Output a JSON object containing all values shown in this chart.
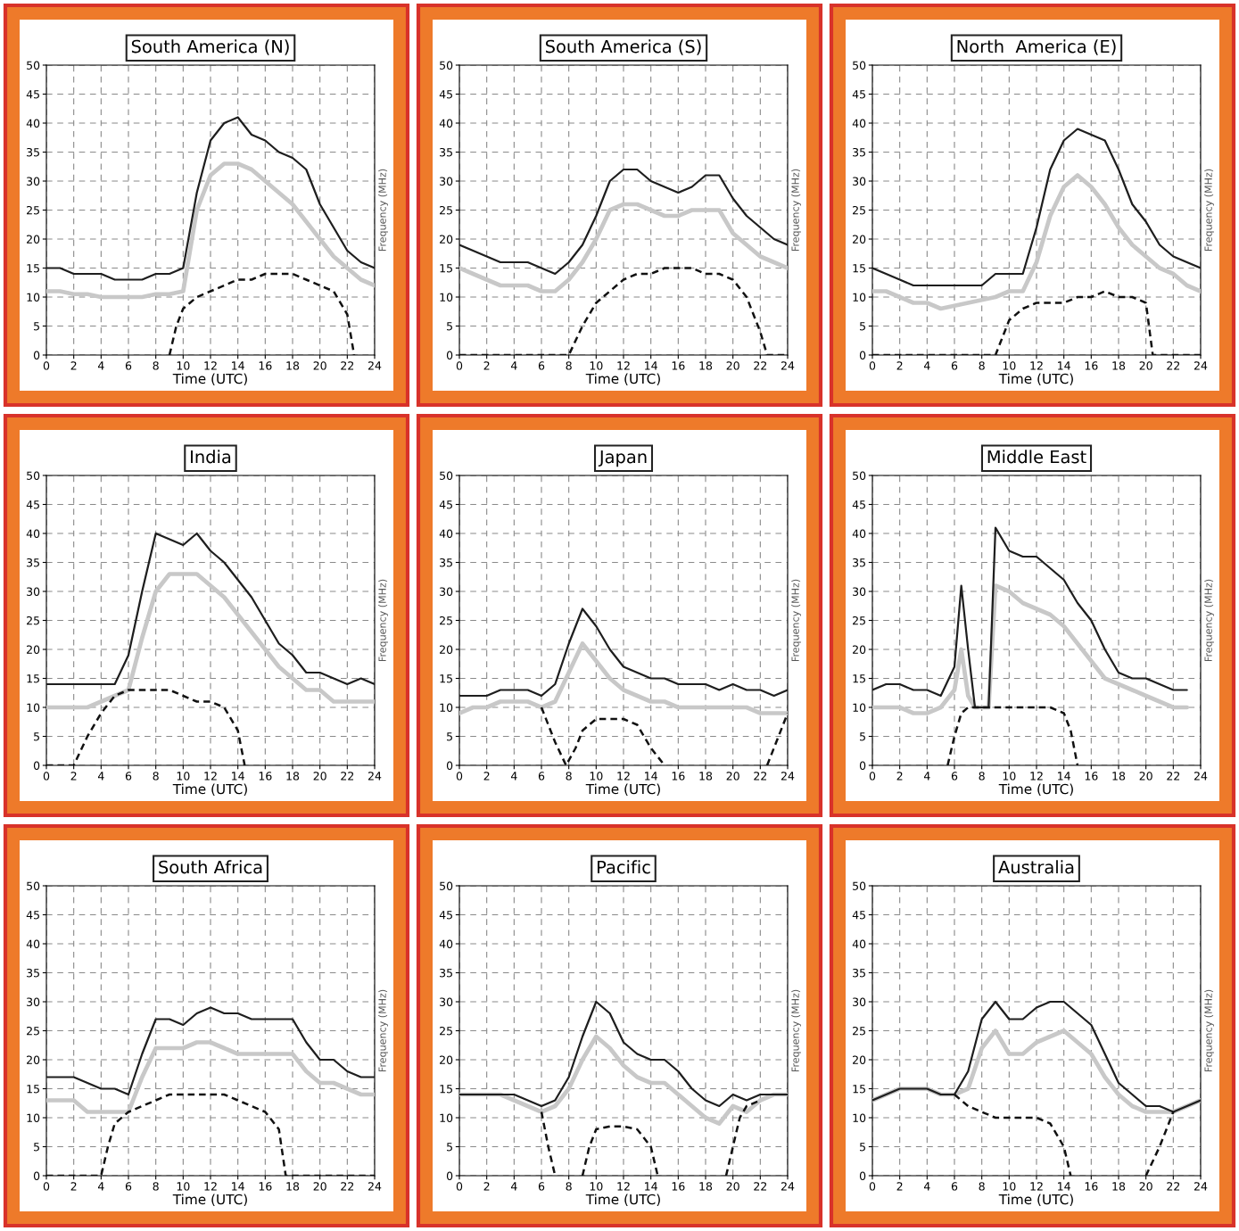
{
  "chart_data": [
    {
      "type": "line",
      "title": "South America (N)",
      "xlabel": "Time (UTC)",
      "ylabel": "Frequency (MHz)",
      "xlim": [
        0,
        24
      ],
      "xticks": [
        0,
        2,
        4,
        6,
        8,
        10,
        12,
        14,
        16,
        18,
        20,
        22,
        24
      ],
      "ylim": [
        0,
        50
      ],
      "yticks": [
        0,
        5,
        10,
        15,
        20,
        25,
        30,
        35,
        40,
        45,
        50
      ],
      "grid": true,
      "series": [
        {
          "color": "#1e1e1e",
          "line_style": "solid",
          "x": [
            0,
            1,
            2,
            3,
            4,
            5,
            6,
            7,
            8,
            9,
            10,
            11,
            12,
            13,
            14,
            15,
            16,
            17,
            18,
            19,
            20,
            21,
            22,
            23,
            24
          ],
          "values": [
            15,
            15,
            14,
            14,
            14,
            13,
            13,
            13,
            14,
            14,
            15,
            28,
            37,
            40,
            41,
            38,
            37,
            35,
            34,
            32,
            26,
            22,
            18,
            16,
            15
          ]
        },
        {
          "color": "#c8c8c8",
          "line_style": "solid",
          "x": [
            0,
            1,
            2,
            3,
            4,
            5,
            6,
            7,
            8,
            9,
            10,
            11,
            12,
            13,
            14,
            15,
            16,
            17,
            18,
            19,
            20,
            21,
            22,
            23,
            24
          ],
          "values": [
            11,
            11,
            10.5,
            10.5,
            10,
            10,
            10,
            10,
            10.5,
            10.5,
            11,
            25,
            31,
            33,
            33,
            32,
            30,
            28,
            26,
            23,
            20,
            17,
            15,
            13,
            12
          ]
        },
        {
          "color": "#111111",
          "line_style": "dashed",
          "x": [
            9,
            9.5,
            10,
            11,
            12,
            13,
            14,
            15,
            16,
            17,
            18,
            19,
            20,
            21,
            22,
            22.5
          ],
          "values": [
            0,
            5,
            8,
            10,
            11,
            12,
            13,
            13,
            14,
            14,
            14,
            13,
            12,
            11,
            7,
            0
          ]
        }
      ]
    },
    {
      "type": "line",
      "title": "South America (S)",
      "xlabel": "Time (UTC)",
      "ylabel": "Frequency (MHz)",
      "xlim": [
        0,
        24
      ],
      "xticks": [
        0,
        2,
        4,
        6,
        8,
        10,
        12,
        14,
        16,
        18,
        20,
        22,
        24
      ],
      "ylim": [
        0,
        50
      ],
      "yticks": [
        0,
        5,
        10,
        15,
        20,
        25,
        30,
        35,
        40,
        45,
        50
      ],
      "grid": true,
      "series": [
        {
          "color": "#1e1e1e",
          "line_style": "solid",
          "x": [
            0,
            1,
            2,
            3,
            4,
            5,
            6,
            7,
            8,
            9,
            10,
            11,
            12,
            13,
            14,
            15,
            16,
            17,
            18,
            19,
            20,
            21,
            22,
            23,
            24
          ],
          "values": [
            19,
            18,
            17,
            16,
            16,
            16,
            15,
            14,
            16,
            19,
            24,
            30,
            32,
            32,
            30,
            29,
            28,
            29,
            31,
            31,
            27,
            24,
            22,
            20,
            19
          ]
        },
        {
          "color": "#c8c8c8",
          "line_style": "solid",
          "x": [
            0,
            1,
            2,
            3,
            4,
            5,
            6,
            7,
            8,
            9,
            10,
            11,
            12,
            13,
            14,
            15,
            16,
            17,
            18,
            19,
            20,
            21,
            22,
            23,
            24
          ],
          "values": [
            15,
            14,
            13,
            12,
            12,
            12,
            11,
            11,
            13,
            16,
            20,
            25,
            26,
            26,
            25,
            24,
            24,
            25,
            25,
            25,
            21,
            19,
            17,
            16,
            15
          ]
        },
        {
          "color": "#111111",
          "line_style": "dashed",
          "x": [
            0,
            8,
            9,
            10,
            11,
            12,
            13,
            14,
            15,
            16,
            17,
            18,
            19,
            20,
            21,
            22,
            22.5,
            24
          ],
          "values": [
            0,
            0,
            5,
            9,
            11,
            13,
            14,
            14,
            15,
            15,
            15,
            14,
            14,
            13,
            10,
            4,
            0,
            0
          ]
        }
      ]
    },
    {
      "type": "line",
      "title": "North  America (E)",
      "xlabel": "Time (UTC)",
      "ylabel": "Frequency (MHz)",
      "xlim": [
        0,
        24
      ],
      "xticks": [
        0,
        2,
        4,
        6,
        8,
        10,
        12,
        14,
        16,
        18,
        20,
        22,
        24
      ],
      "ylim": [
        0,
        50
      ],
      "yticks": [
        0,
        5,
        10,
        15,
        20,
        25,
        30,
        35,
        40,
        45,
        50
      ],
      "grid": true,
      "series": [
        {
          "color": "#1e1e1e",
          "line_style": "solid",
          "x": [
            0,
            1,
            2,
            3,
            4,
            5,
            6,
            7,
            8,
            9,
            10,
            11,
            12,
            13,
            14,
            15,
            16,
            17,
            18,
            19,
            20,
            21,
            22,
            23,
            24
          ],
          "values": [
            15,
            14,
            13,
            12,
            12,
            12,
            12,
            12,
            12,
            14,
            14,
            14,
            22,
            32,
            37,
            39,
            38,
            37,
            32,
            26,
            23,
            19,
            17,
            16,
            15
          ]
        },
        {
          "color": "#c8c8c8",
          "line_style": "solid",
          "x": [
            0,
            1,
            2,
            3,
            4,
            5,
            6,
            7,
            8,
            9,
            10,
            11,
            12,
            13,
            14,
            15,
            16,
            17,
            18,
            19,
            20,
            21,
            22,
            23,
            24
          ],
          "values": [
            11,
            11,
            10,
            9,
            9,
            8,
            8.5,
            9,
            9.5,
            10,
            11,
            11,
            16,
            24,
            29,
            31,
            29,
            26,
            22,
            19,
            17,
            15,
            14,
            12,
            11
          ]
        },
        {
          "color": "#111111",
          "line_style": "dashed",
          "x": [
            0,
            9,
            9.5,
            10,
            11,
            12,
            13,
            14,
            15,
            16,
            17,
            18,
            19,
            20,
            20.5,
            24
          ],
          "values": [
            0,
            0,
            3,
            6,
            8,
            9,
            9,
            9,
            10,
            10,
            11,
            10,
            10,
            9,
            0,
            0
          ]
        }
      ]
    },
    {
      "type": "line",
      "title": "India",
      "xlabel": "Time (UTC)",
      "ylabel": "Frequency (MHz)",
      "xlim": [
        0,
        24
      ],
      "xticks": [
        0,
        2,
        4,
        6,
        8,
        10,
        12,
        14,
        16,
        18,
        20,
        22,
        24
      ],
      "ylim": [
        0,
        50
      ],
      "yticks": [
        0,
        5,
        10,
        15,
        20,
        25,
        30,
        35,
        40,
        45,
        50
      ],
      "grid": true,
      "series": [
        {
          "color": "#1e1e1e",
          "line_style": "solid",
          "x": [
            0,
            1,
            2,
            3,
            4,
            5,
            6,
            7,
            8,
            9,
            10,
            11,
            12,
            13,
            14,
            15,
            16,
            17,
            18,
            19,
            20,
            21,
            22,
            23,
            24
          ],
          "values": [
            14,
            14,
            14,
            14,
            14,
            14,
            19,
            30,
            40,
            39,
            38,
            40,
            37,
            35,
            32,
            29,
            25,
            21,
            19,
            16,
            16,
            15,
            14,
            15,
            14
          ]
        },
        {
          "color": "#c8c8c8",
          "line_style": "solid",
          "x": [
            0,
            1,
            2,
            3,
            4,
            5,
            6,
            7,
            8,
            9,
            10,
            11,
            12,
            13,
            14,
            15,
            16,
            17,
            18,
            19,
            20,
            21,
            22,
            23,
            24
          ],
          "values": [
            10,
            10,
            10,
            10,
            11,
            12,
            13,
            22,
            30,
            33,
            33,
            33,
            31,
            29,
            26,
            23,
            20,
            17,
            15,
            13,
            13,
            11,
            11,
            11,
            11
          ]
        },
        {
          "color": "#111111",
          "line_style": "dashed",
          "x": [
            0,
            2,
            3,
            4,
            5,
            6,
            7,
            8,
            9,
            10,
            11,
            12,
            13,
            14,
            14.5
          ],
          "values": [
            0,
            0,
            5,
            9,
            12,
            13,
            13,
            13,
            13,
            12,
            11,
            11,
            10,
            6,
            0
          ]
        }
      ]
    },
    {
      "type": "line",
      "title": "Japan",
      "xlabel": "Time (UTC)",
      "ylabel": "Frequency (MHz)",
      "xlim": [
        0,
        24
      ],
      "xticks": [
        0,
        2,
        4,
        6,
        8,
        10,
        12,
        14,
        16,
        18,
        20,
        22,
        24
      ],
      "ylim": [
        0,
        50
      ],
      "yticks": [
        0,
        5,
        10,
        15,
        20,
        25,
        30,
        35,
        40,
        45,
        50
      ],
      "grid": true,
      "series": [
        {
          "color": "#1e1e1e",
          "line_style": "solid",
          "x": [
            0,
            1,
            2,
            3,
            4,
            5,
            6,
            7,
            8,
            9,
            10,
            11,
            12,
            13,
            14,
            15,
            16,
            17,
            18,
            19,
            20,
            21,
            22,
            23,
            24
          ],
          "values": [
            12,
            12,
            12,
            13,
            13,
            13,
            12,
            14,
            21,
            27,
            24,
            20,
            17,
            16,
            15,
            15,
            14,
            14,
            14,
            13,
            14,
            13,
            13,
            12,
            13
          ]
        },
        {
          "color": "#c8c8c8",
          "line_style": "solid",
          "x": [
            0,
            1,
            2,
            3,
            4,
            5,
            6,
            7,
            8,
            9,
            10,
            11,
            12,
            13,
            14,
            15,
            16,
            17,
            18,
            19,
            20,
            21,
            22,
            23,
            24
          ],
          "values": [
            9,
            10,
            10,
            11,
            11,
            11,
            10,
            11,
            16,
            21,
            18,
            15,
            13,
            12,
            11,
            11,
            10,
            10,
            10,
            10,
            10,
            10,
            9,
            9,
            9
          ]
        },
        {
          "color": "#111111",
          "line_style": "dashed",
          "x": [
            6,
            7,
            7.8,
            8.5,
            9,
            10,
            11,
            12,
            13,
            14,
            15,
            15.5,
            22.5,
            24
          ],
          "values": [
            10,
            4,
            0,
            3,
            6,
            8,
            8,
            8,
            7,
            3,
            0,
            null,
            0,
            9
          ]
        }
      ]
    },
    {
      "type": "line",
      "title": "Middle East",
      "xlabel": "Time (UTC)",
      "ylabel": "Frequency (MHz)",
      "xlim": [
        0,
        24
      ],
      "xticks": [
        0,
        2,
        4,
        6,
        8,
        10,
        12,
        14,
        16,
        18,
        20,
        22,
        24
      ],
      "ylim": [
        0,
        50
      ],
      "yticks": [
        0,
        5,
        10,
        15,
        20,
        25,
        30,
        35,
        40,
        45,
        50
      ],
      "grid": true,
      "series": [
        {
          "color": "#1e1e1e",
          "line_style": "solid",
          "x": [
            0,
            1,
            2,
            3,
            4,
            5,
            6,
            6.5,
            7,
            7.5,
            8,
            8.5,
            9,
            10,
            11,
            12,
            13,
            14,
            15,
            16,
            17,
            18,
            19,
            20,
            21,
            22,
            23
          ],
          "values": [
            13,
            14,
            14,
            13,
            13,
            12,
            17,
            31,
            20,
            10,
            10,
            10,
            41,
            37,
            36,
            36,
            34,
            32,
            28,
            25,
            20,
            16,
            15,
            15,
            14,
            13,
            13
          ]
        },
        {
          "color": "#c8c8c8",
          "line_style": "solid",
          "x": [
            0,
            1,
            2,
            3,
            4,
            5,
            6,
            6.5,
            7,
            7.5,
            8,
            8.5,
            9,
            10,
            11,
            12,
            13,
            14,
            15,
            16,
            17,
            18,
            19,
            20,
            21,
            22,
            23
          ],
          "values": [
            10,
            10,
            10,
            9,
            9,
            10,
            13,
            20,
            12,
            10,
            10,
            10,
            31,
            30,
            28,
            27,
            26,
            24,
            21,
            18,
            15,
            14,
            13,
            12,
            11,
            10,
            10
          ]
        },
        {
          "color": "#111111",
          "line_style": "dashed",
          "x": [
            5.5,
            6,
            6.5,
            7,
            8,
            9,
            10,
            11,
            12,
            13,
            14,
            14.5,
            15
          ],
          "values": [
            0,
            5,
            9,
            10,
            10,
            10,
            10,
            10,
            10,
            10,
            9,
            6,
            0
          ]
        }
      ]
    },
    {
      "type": "line",
      "title": "South Africa",
      "xlabel": "Time (UTC)",
      "ylabel": "Frequency (MHz)",
      "xlim": [
        0,
        24
      ],
      "xticks": [
        0,
        2,
        4,
        6,
        8,
        10,
        12,
        14,
        16,
        18,
        20,
        22,
        24
      ],
      "ylim": [
        0,
        50
      ],
      "yticks": [
        0,
        5,
        10,
        15,
        20,
        25,
        30,
        35,
        40,
        45,
        50
      ],
      "grid": true,
      "series": [
        {
          "color": "#1e1e1e",
          "line_style": "solid",
          "x": [
            0,
            1,
            2,
            3,
            4,
            5,
            6,
            7,
            8,
            9,
            10,
            11,
            12,
            13,
            14,
            15,
            16,
            17,
            18,
            19,
            20,
            21,
            22,
            23,
            24
          ],
          "values": [
            17,
            17,
            17,
            16,
            15,
            15,
            14,
            21,
            27,
            27,
            26,
            28,
            29,
            28,
            28,
            27,
            27,
            27,
            27,
            23,
            20,
            20,
            18,
            17,
            17
          ]
        },
        {
          "color": "#c8c8c8",
          "line_style": "solid",
          "x": [
            0,
            1,
            2,
            3,
            4,
            5,
            6,
            7,
            8,
            9,
            10,
            11,
            12,
            13,
            14,
            15,
            16,
            17,
            18,
            19,
            20,
            21,
            22,
            23,
            24
          ],
          "values": [
            13,
            13,
            13,
            11,
            11,
            11,
            11,
            17,
            22,
            22,
            22,
            23,
            23,
            22,
            21,
            21,
            21,
            21,
            21,
            18,
            16,
            16,
            15,
            14,
            14
          ]
        },
        {
          "color": "#111111",
          "line_style": "dashed",
          "x": [
            0,
            4,
            4.5,
            5,
            6,
            7,
            8,
            9,
            10,
            11,
            12,
            13,
            14,
            15,
            16,
            17,
            17.5,
            24
          ],
          "values": [
            0,
            0,
            5,
            9,
            11,
            12,
            13,
            14,
            14,
            14,
            14,
            14,
            13,
            12,
            11,
            8,
            0,
            0
          ]
        }
      ]
    },
    {
      "type": "line",
      "title": "Pacific",
      "xlabel": "Time (UTC)",
      "ylabel": "Frequency (MHz)",
      "xlim": [
        0,
        24
      ],
      "xticks": [
        0,
        2,
        4,
        6,
        8,
        10,
        12,
        14,
        16,
        18,
        20,
        22,
        24
      ],
      "ylim": [
        0,
        50
      ],
      "yticks": [
        0,
        5,
        10,
        15,
        20,
        25,
        30,
        35,
        40,
        45,
        50
      ],
      "grid": true,
      "series": [
        {
          "color": "#1e1e1e",
          "line_style": "solid",
          "x": [
            0,
            1,
            2,
            3,
            4,
            5,
            6,
            7,
            8,
            9,
            10,
            11,
            12,
            13,
            14,
            15,
            16,
            17,
            18,
            19,
            20,
            21,
            22,
            23,
            24
          ],
          "values": [
            14,
            14,
            14,
            14,
            14,
            13,
            12,
            13,
            17,
            24,
            30,
            28,
            23,
            21,
            20,
            20,
            18,
            15,
            13,
            12,
            14,
            13,
            14,
            14,
            14
          ]
        },
        {
          "color": "#c8c8c8",
          "line_style": "solid",
          "x": [
            0,
            1,
            2,
            3,
            4,
            5,
            6,
            7,
            8,
            9,
            10,
            11,
            12,
            13,
            14,
            15,
            16,
            17,
            18,
            19,
            20,
            21,
            22,
            23,
            24
          ],
          "values": [
            14,
            14,
            14,
            14,
            13,
            12,
            11,
            12,
            15,
            20,
            24,
            22,
            19,
            17,
            16,
            16,
            14,
            12,
            10,
            9,
            12,
            11,
            13,
            14,
            14
          ]
        },
        {
          "color": "#111111",
          "line_style": "dashed",
          "x": [
            6,
            6.5,
            7,
            8,
            9,
            9.5,
            10,
            11,
            12,
            13,
            14,
            14.5,
            17,
            19.5,
            20,
            20.5,
            21,
            22
          ],
          "values": [
            11,
            5,
            0,
            null,
            0,
            5,
            8,
            8.5,
            8.5,
            8,
            5,
            0,
            null,
            0,
            5,
            10,
            12,
            13
          ]
        }
      ]
    },
    {
      "type": "line",
      "title": "Australia",
      "xlabel": "Time (UTC)",
      "ylabel": "Frequency (MHz)",
      "xlim": [
        0,
        24
      ],
      "xticks": [
        0,
        2,
        4,
        6,
        8,
        10,
        12,
        14,
        16,
        18,
        20,
        22,
        24
      ],
      "ylim": [
        0,
        50
      ],
      "yticks": [
        0,
        5,
        10,
        15,
        20,
        25,
        30,
        35,
        40,
        45,
        50
      ],
      "grid": true,
      "series": [
        {
          "color": "#1e1e1e",
          "line_style": "solid",
          "x": [
            0,
            1,
            2,
            3,
            4,
            5,
            6,
            7,
            8,
            9,
            10,
            11,
            12,
            13,
            14,
            15,
            16,
            17,
            18,
            19,
            20,
            21,
            22,
            23,
            24
          ],
          "values": [
            13,
            14,
            15,
            15,
            15,
            14,
            14,
            18,
            27,
            30,
            27,
            27,
            29,
            30,
            30,
            28,
            26,
            21,
            16,
            14,
            12,
            12,
            11,
            12,
            13
          ]
        },
        {
          "color": "#c8c8c8",
          "line_style": "solid",
          "x": [
            0,
            1,
            2,
            3,
            4,
            5,
            6,
            7,
            8,
            9,
            10,
            11,
            12,
            13,
            14,
            15,
            16,
            17,
            18,
            19,
            20,
            21,
            22,
            23,
            24
          ],
          "values": [
            13,
            14,
            15,
            15,
            15,
            14,
            14,
            15,
            22,
            25,
            21,
            21,
            23,
            24,
            25,
            23,
            21,
            17,
            14,
            12,
            11,
            11,
            11,
            12,
            13
          ]
        },
        {
          "color": "#111111",
          "line_style": "dashed",
          "x": [
            6,
            7,
            8,
            9,
            10,
            11,
            12,
            13,
            14,
            14.5,
            17,
            20,
            21,
            22
          ],
          "values": [
            14,
            12,
            11,
            10,
            10,
            10,
            10,
            9,
            5,
            0,
            null,
            0,
            5,
            11
          ]
        }
      ]
    }
  ]
}
